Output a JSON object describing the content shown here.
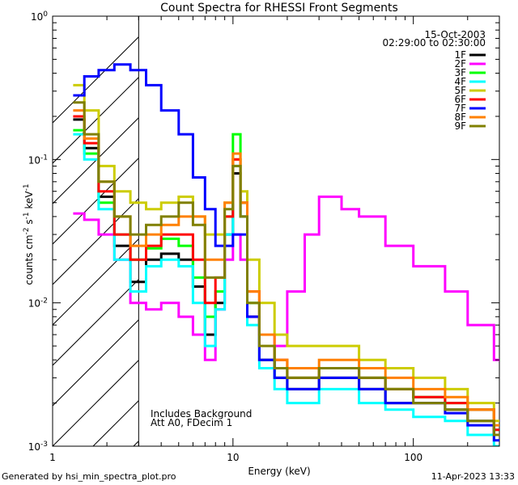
{
  "chart_data": {
    "type": "line",
    "title": "Count Spectra for RHESSI Front Segments",
    "xlabel": "Energy (keV)",
    "ylabel_parts": [
      "counts cm",
      "-2",
      " s",
      "-1",
      " keV",
      "-1"
    ],
    "xscale": "log",
    "yscale": "log",
    "xlim": [
      1,
      300
    ],
    "ylim": [
      0.001,
      1
    ],
    "x_ticks": [
      {
        "v": 1,
        "label": "1"
      },
      {
        "v": 10,
        "label": "10"
      },
      {
        "v": 100,
        "label": "100"
      }
    ],
    "y_ticks": [
      {
        "v": 0.001,
        "base": "10",
        "exp": "-3"
      },
      {
        "v": 0.01,
        "base": "10",
        "exp": "-2"
      },
      {
        "v": 0.1,
        "base": "10",
        "exp": "-1"
      },
      {
        "v": 1,
        "base": "10",
        "exp": "0"
      }
    ],
    "shaded_region": {
      "x_from": 1,
      "x_to": 3,
      "pattern": "diagonal hatch"
    },
    "annotations": {
      "date": "15-Oct-2003",
      "time_range": "02:29:00 to 02:30:00",
      "background_note": "Includes Background",
      "attenuator_note": "Att A0, FDecim 1"
    },
    "legend_position": "top-right",
    "series": [
      {
        "name": "1F",
        "color": "#000000",
        "values": [
          [
            1.3,
            0.19
          ],
          [
            1.5,
            0.12
          ],
          [
            1.8,
            0.055
          ],
          [
            2.2,
            0.025
          ],
          [
            2.7,
            0.014
          ],
          [
            3.3,
            0.02
          ],
          [
            4,
            0.022
          ],
          [
            5,
            0.02
          ],
          [
            6,
            0.013
          ],
          [
            7,
            0.006
          ],
          [
            8,
            0.01
          ],
          [
            9,
            0.03
          ],
          [
            10,
            0.08
          ],
          [
            11,
            0.04
          ],
          [
            12,
            0.008
          ],
          [
            14,
            0.004
          ],
          [
            17,
            0.003
          ],
          [
            20,
            0.0025
          ],
          [
            30,
            0.003
          ],
          [
            50,
            0.0025
          ],
          [
            70,
            0.002
          ],
          [
            100,
            0.002
          ],
          [
            150,
            0.0018
          ],
          [
            200,
            0.0015
          ],
          [
            280,
            0.0012
          ]
        ]
      },
      {
        "name": "2F",
        "color": "#ff00ff",
        "values": [
          [
            1.3,
            0.042
          ],
          [
            1.5,
            0.038
          ],
          [
            1.8,
            0.03
          ],
          [
            2.2,
            0.02
          ],
          [
            2.7,
            0.01
          ],
          [
            3.3,
            0.009
          ],
          [
            4,
            0.01
          ],
          [
            5,
            0.008
          ],
          [
            6,
            0.006
          ],
          [
            7,
            0.004
          ],
          [
            8,
            0.009
          ],
          [
            9,
            0.02
          ],
          [
            10,
            0.03
          ],
          [
            11,
            0.02
          ],
          [
            12,
            0.008
          ],
          [
            14,
            0.006
          ],
          [
            17,
            0.005
          ],
          [
            20,
            0.012
          ],
          [
            25,
            0.03
          ],
          [
            30,
            0.055
          ],
          [
            40,
            0.045
          ],
          [
            50,
            0.04
          ],
          [
            70,
            0.025
          ],
          [
            100,
            0.018
          ],
          [
            150,
            0.012
          ],
          [
            200,
            0.007
          ],
          [
            280,
            0.004
          ]
        ]
      },
      {
        "name": "3F",
        "color": "#00ff00",
        "values": [
          [
            1.3,
            0.16
          ],
          [
            1.5,
            0.11
          ],
          [
            1.8,
            0.05
          ],
          [
            2.2,
            0.03
          ],
          [
            2.7,
            0.02
          ],
          [
            3.3,
            0.024
          ],
          [
            4,
            0.028
          ],
          [
            5,
            0.025
          ],
          [
            6,
            0.015
          ],
          [
            7,
            0.008
          ],
          [
            8,
            0.012
          ],
          [
            9,
            0.04
          ],
          [
            10,
            0.15
          ],
          [
            11,
            0.05
          ],
          [
            12,
            0.01
          ],
          [
            14,
            0.005
          ],
          [
            17,
            0.0035
          ],
          [
            20,
            0.003
          ],
          [
            30,
            0.0035
          ],
          [
            50,
            0.003
          ],
          [
            70,
            0.0025
          ],
          [
            100,
            0.0022
          ],
          [
            150,
            0.002
          ],
          [
            200,
            0.0018
          ],
          [
            280,
            0.0013
          ]
        ]
      },
      {
        "name": "4F",
        "color": "#00ffff",
        "values": [
          [
            1.3,
            0.15
          ],
          [
            1.5,
            0.1
          ],
          [
            1.8,
            0.045
          ],
          [
            2.2,
            0.02
          ],
          [
            2.7,
            0.012
          ],
          [
            3.3,
            0.018
          ],
          [
            4,
            0.02
          ],
          [
            5,
            0.018
          ],
          [
            6,
            0.01
          ],
          [
            7,
            0.005
          ],
          [
            8,
            0.009
          ],
          [
            9,
            0.03
          ],
          [
            10,
            0.09
          ],
          [
            11,
            0.04
          ],
          [
            12,
            0.007
          ],
          [
            14,
            0.0035
          ],
          [
            17,
            0.0025
          ],
          [
            20,
            0.002
          ],
          [
            30,
            0.0025
          ],
          [
            50,
            0.002
          ],
          [
            70,
            0.0018
          ],
          [
            100,
            0.0016
          ],
          [
            150,
            0.0015
          ],
          [
            200,
            0.0012
          ],
          [
            280,
            0.001
          ]
        ]
      },
      {
        "name": "5F",
        "color": "#cccc00",
        "values": [
          [
            1.3,
            0.33
          ],
          [
            1.5,
            0.22
          ],
          [
            1.8,
            0.09
          ],
          [
            2.2,
            0.06
          ],
          [
            2.7,
            0.05
          ],
          [
            3.3,
            0.045
          ],
          [
            4,
            0.05
          ],
          [
            5,
            0.055
          ],
          [
            6,
            0.04
          ],
          [
            7,
            0.03
          ],
          [
            8,
            0.03
          ],
          [
            9,
            0.05
          ],
          [
            10,
            0.1
          ],
          [
            11,
            0.06
          ],
          [
            12,
            0.02
          ],
          [
            14,
            0.01
          ],
          [
            17,
            0.006
          ],
          [
            20,
            0.005
          ],
          [
            30,
            0.005
          ],
          [
            50,
            0.004
          ],
          [
            70,
            0.0035
          ],
          [
            100,
            0.003
          ],
          [
            150,
            0.0025
          ],
          [
            200,
            0.002
          ],
          [
            280,
            0.0015
          ]
        ]
      },
      {
        "name": "6F",
        "color": "#ff0000",
        "values": [
          [
            1.3,
            0.2
          ],
          [
            1.5,
            0.13
          ],
          [
            1.8,
            0.06
          ],
          [
            2.2,
            0.03
          ],
          [
            2.7,
            0.02
          ],
          [
            3.3,
            0.025
          ],
          [
            4,
            0.03
          ],
          [
            5,
            0.03
          ],
          [
            6,
            0.02
          ],
          [
            7,
            0.01
          ],
          [
            8,
            0.015
          ],
          [
            9,
            0.04
          ],
          [
            10,
            0.1
          ],
          [
            11,
            0.05
          ],
          [
            12,
            0.012
          ],
          [
            14,
            0.005
          ],
          [
            17,
            0.004
          ],
          [
            20,
            0.003
          ],
          [
            30,
            0.0035
          ],
          [
            50,
            0.003
          ],
          [
            70,
            0.0025
          ],
          [
            100,
            0.0022
          ],
          [
            150,
            0.002
          ],
          [
            200,
            0.0018
          ],
          [
            280,
            0.0013
          ]
        ]
      },
      {
        "name": "7F",
        "color": "#0000ff",
        "values": [
          [
            1.3,
            0.28
          ],
          [
            1.5,
            0.38
          ],
          [
            1.8,
            0.42
          ],
          [
            2.2,
            0.46
          ],
          [
            2.7,
            0.42
          ],
          [
            3.3,
            0.33
          ],
          [
            4,
            0.22
          ],
          [
            5,
            0.15
          ],
          [
            6,
            0.075
          ],
          [
            7,
            0.045
          ],
          [
            8,
            0.025
          ],
          [
            9,
            0.025
          ],
          [
            10,
            0.03
          ],
          [
            11,
            0.03
          ],
          [
            12,
            0.008
          ],
          [
            14,
            0.004
          ],
          [
            17,
            0.003
          ],
          [
            20,
            0.0025
          ],
          [
            30,
            0.003
          ],
          [
            50,
            0.0025
          ],
          [
            70,
            0.002
          ],
          [
            100,
            0.002
          ],
          [
            150,
            0.0017
          ],
          [
            200,
            0.0014
          ],
          [
            280,
            0.0011
          ]
        ]
      },
      {
        "name": "8F",
        "color": "#ff8000",
        "values": [
          [
            1.3,
            0.22
          ],
          [
            1.5,
            0.14
          ],
          [
            1.8,
            0.07
          ],
          [
            2.2,
            0.04
          ],
          [
            2.7,
            0.025
          ],
          [
            3.3,
            0.03
          ],
          [
            4,
            0.035
          ],
          [
            5,
            0.04
          ],
          [
            6,
            0.04
          ],
          [
            7,
            0.02
          ],
          [
            8,
            0.02
          ],
          [
            9,
            0.05
          ],
          [
            10,
            0.11
          ],
          [
            11,
            0.05
          ],
          [
            12,
            0.012
          ],
          [
            14,
            0.006
          ],
          [
            17,
            0.004
          ],
          [
            20,
            0.0035
          ],
          [
            30,
            0.004
          ],
          [
            50,
            0.0035
          ],
          [
            70,
            0.003
          ],
          [
            100,
            0.0025
          ],
          [
            150,
            0.0022
          ],
          [
            200,
            0.0018
          ],
          [
            280,
            0.0014
          ]
        ]
      },
      {
        "name": "9F",
        "color": "#808000",
        "values": [
          [
            1.3,
            0.25
          ],
          [
            1.5,
            0.15
          ],
          [
            1.8,
            0.07
          ],
          [
            2.2,
            0.04
          ],
          [
            2.7,
            0.03
          ],
          [
            3.3,
            0.035
          ],
          [
            4,
            0.04
          ],
          [
            5,
            0.05
          ],
          [
            6,
            0.035
          ],
          [
            7,
            0.015
          ],
          [
            8,
            0.015
          ],
          [
            9,
            0.045
          ],
          [
            10,
            0.09
          ],
          [
            11,
            0.04
          ],
          [
            12,
            0.01
          ],
          [
            14,
            0.005
          ],
          [
            17,
            0.0035
          ],
          [
            20,
            0.003
          ],
          [
            30,
            0.0035
          ],
          [
            50,
            0.003
          ],
          [
            70,
            0.0025
          ],
          [
            100,
            0.002
          ],
          [
            150,
            0.0018
          ],
          [
            200,
            0.0015
          ],
          [
            280,
            0.0012
          ]
        ]
      }
    ]
  },
  "footer": {
    "generated_by": "Generated by hsi_min_spectra_plot.pro",
    "timestamp": "11-Apr-2023 13:33"
  }
}
